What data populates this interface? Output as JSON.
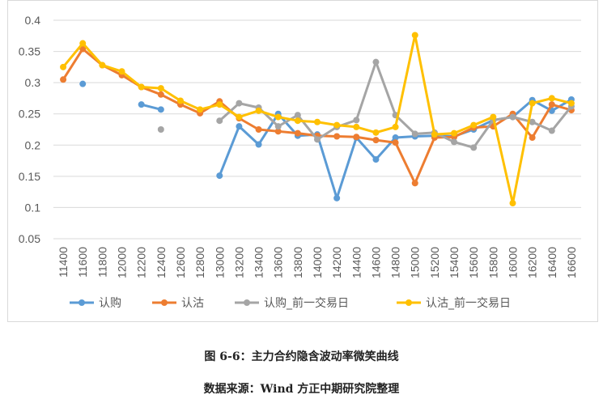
{
  "caption": {
    "title": "图 6-6：主力合约隐含波动率微笑曲线",
    "source": "数据来源：Wind    方正中期研究院整理"
  },
  "chart_data": {
    "type": "line",
    "title": "",
    "xlabel": "",
    "ylabel": "",
    "ylim": [
      0.05,
      0.4
    ],
    "yticks": [
      "0.4",
      "0.35",
      "0.3",
      "0.25",
      "0.2",
      "0.15",
      "0.1",
      "0.05"
    ],
    "ytick_values": [
      0.4,
      0.35,
      0.3,
      0.25,
      0.2,
      0.15,
      0.1,
      0.05
    ],
    "grid": true,
    "legend_position": "bottom",
    "categories": [
      "11400",
      "11600",
      "11800",
      "12000",
      "12200",
      "12400",
      "12600",
      "12800",
      "13000",
      "13200",
      "13400",
      "13600",
      "13800",
      "14000",
      "14200",
      "14400",
      "14600",
      "14800",
      "15000",
      "15200",
      "15400",
      "15600",
      "15800",
      "16000",
      "16200",
      "16400",
      "16600"
    ],
    "series": [
      {
        "name": "认购",
        "color": "#5b9bd5",
        "values": [
          null,
          0.298,
          null,
          null,
          0.265,
          0.257,
          null,
          null,
          0.151,
          0.23,
          0.201,
          0.25,
          0.215,
          0.217,
          0.115,
          0.212,
          0.177,
          0.212,
          0.214,
          0.215,
          0.214,
          0.225,
          0.24,
          0.245,
          0.272,
          0.255,
          0.273
        ]
      },
      {
        "name": "认沽",
        "color": "#ed7d31",
        "values": [
          0.305,
          0.354,
          0.328,
          0.312,
          0.293,
          0.281,
          0.265,
          0.251,
          0.27,
          0.243,
          0.225,
          0.222,
          0.219,
          0.215,
          0.214,
          0.213,
          0.208,
          0.204,
          0.139,
          0.212,
          0.213,
          0.228,
          0.23,
          0.25,
          0.212,
          0.265,
          0.256
        ]
      },
      {
        "name": "认购_前一交易日",
        "color": "#a5a5a5",
        "values": [
          null,
          null,
          null,
          null,
          null,
          0.225,
          null,
          null,
          0.239,
          0.267,
          0.26,
          0.23,
          0.248,
          0.209,
          0.229,
          0.24,
          0.333,
          0.248,
          0.218,
          0.22,
          0.205,
          0.196,
          0.24,
          0.245,
          0.237,
          0.223,
          0.262
        ]
      },
      {
        "name": "认沽_前一交易日",
        "color": "#ffc000",
        "values": [
          0.325,
          0.363,
          0.328,
          0.318,
          0.293,
          0.291,
          0.271,
          0.257,
          0.265,
          0.245,
          0.255,
          0.245,
          0.239,
          0.237,
          0.232,
          0.229,
          0.22,
          0.229,
          0.376,
          0.217,
          0.219,
          0.232,
          0.245,
          0.107,
          0.267,
          0.275,
          0.267
        ]
      }
    ]
  }
}
